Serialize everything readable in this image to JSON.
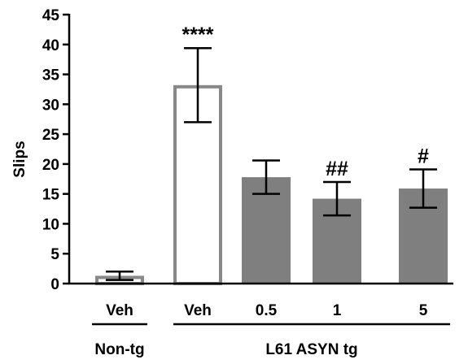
{
  "chart_data": {
    "type": "bar",
    "title": "",
    "xlabel": "",
    "ylabel": "Slips",
    "ylim": [
      0,
      45
    ],
    "yticks": [
      "0",
      "5",
      "10",
      "15",
      "20",
      "25",
      "30",
      "35",
      "40",
      "45"
    ],
    "categories": [
      "Veh",
      "Veh",
      "0.5",
      "1",
      "5"
    ],
    "values": [
      1.3,
      33.2,
      17.8,
      14.2,
      15.9
    ],
    "error": [
      0.7,
      6.2,
      2.8,
      2.8,
      3.2
    ],
    "annotations": [
      "",
      "****",
      "",
      "##",
      "#"
    ],
    "groups": [
      {
        "label": "Non-tg",
        "categories": [
          0
        ]
      },
      {
        "label": "L61 ASYN tg",
        "categories": [
          1,
          2,
          3,
          4
        ]
      }
    ],
    "bar_styles": [
      "outline-gray",
      "outline-gray",
      "filled-gray",
      "filled-gray",
      "filled-gray"
    ],
    "colors": {
      "fill": "#7f7f7f",
      "outline": "#888888",
      "axis": "#000000"
    }
  }
}
